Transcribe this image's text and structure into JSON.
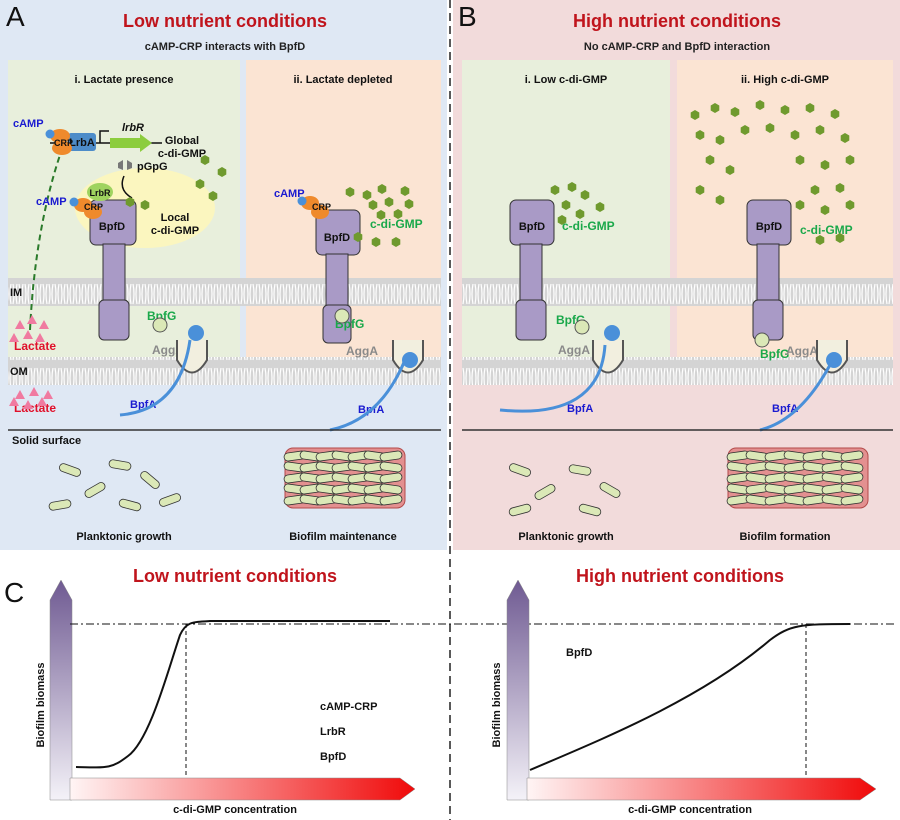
{
  "panel_a": {
    "letter": "A",
    "title": "Low nutrient conditions",
    "subtitle": "cAMP-CRP interacts with BpfD",
    "sub_i": "i. Lactate presence",
    "sub_ii": "ii. Lactate depleted",
    "camp": "cAMP",
    "crp": "CRP",
    "lrba": "LrbA",
    "lrbr_gene": "lrbR",
    "lrbr": "LrbR",
    "global_1": "Global",
    "global_2": "c-di-GMP",
    "pgpg": "pGpG",
    "local_1": "Local",
    "local_2": "c-di-GMP",
    "bpfd": "BpfD",
    "cdigmp": "c-di-GMP",
    "bpfg": "BpfG",
    "agga": "AggA",
    "bpfa": "BpfA",
    "lactate": "Lactate",
    "im": "IM",
    "om": "OM",
    "solid_surface": "Solid surface",
    "planktonic": "Planktonic growth",
    "biofilm": "Biofilm maintenance"
  },
  "panel_b": {
    "letter": "B",
    "title": "High nutrient conditions",
    "subtitle": "No cAMP-CRP and BpfD interaction",
    "sub_i": "i. Low c-di-GMP",
    "sub_ii": "ii. High c-di-GMP",
    "bpfd": "BpfD",
    "cdigmp": "c-di-GMP",
    "bpfg": "BpfG",
    "agga": "AggA",
    "bpfa": "BpfA",
    "planktonic": "Planktonic growth",
    "biofilm": "Biofilm formation"
  },
  "panel_c": {
    "letter": "C",
    "left": {
      "title": "Low nutrient conditions",
      "ylabel": "Biofilm biomass",
      "xlabel": "c-di-GMP concentration",
      "legend": [
        "cAMP-CRP",
        "LrbR",
        "BpfD"
      ]
    },
    "right": {
      "title": "High nutrient conditions",
      "ylabel": "Biofilm biomass",
      "xlabel": "c-di-GMP concentration",
      "legend": [
        "BpfD"
      ]
    }
  },
  "colors": {
    "panel_a_bg": "#dfe8f4",
    "panel_b_bg": "#f2dbdb",
    "sub_green": "#e8efdc",
    "sub_peach": "#fbe4d3",
    "title_red": "#c0141c",
    "bpfd_purple": "#a99ac6",
    "cdigmp_green": "#6f9a2e",
    "camp_blue": "#1a1ad0"
  }
}
